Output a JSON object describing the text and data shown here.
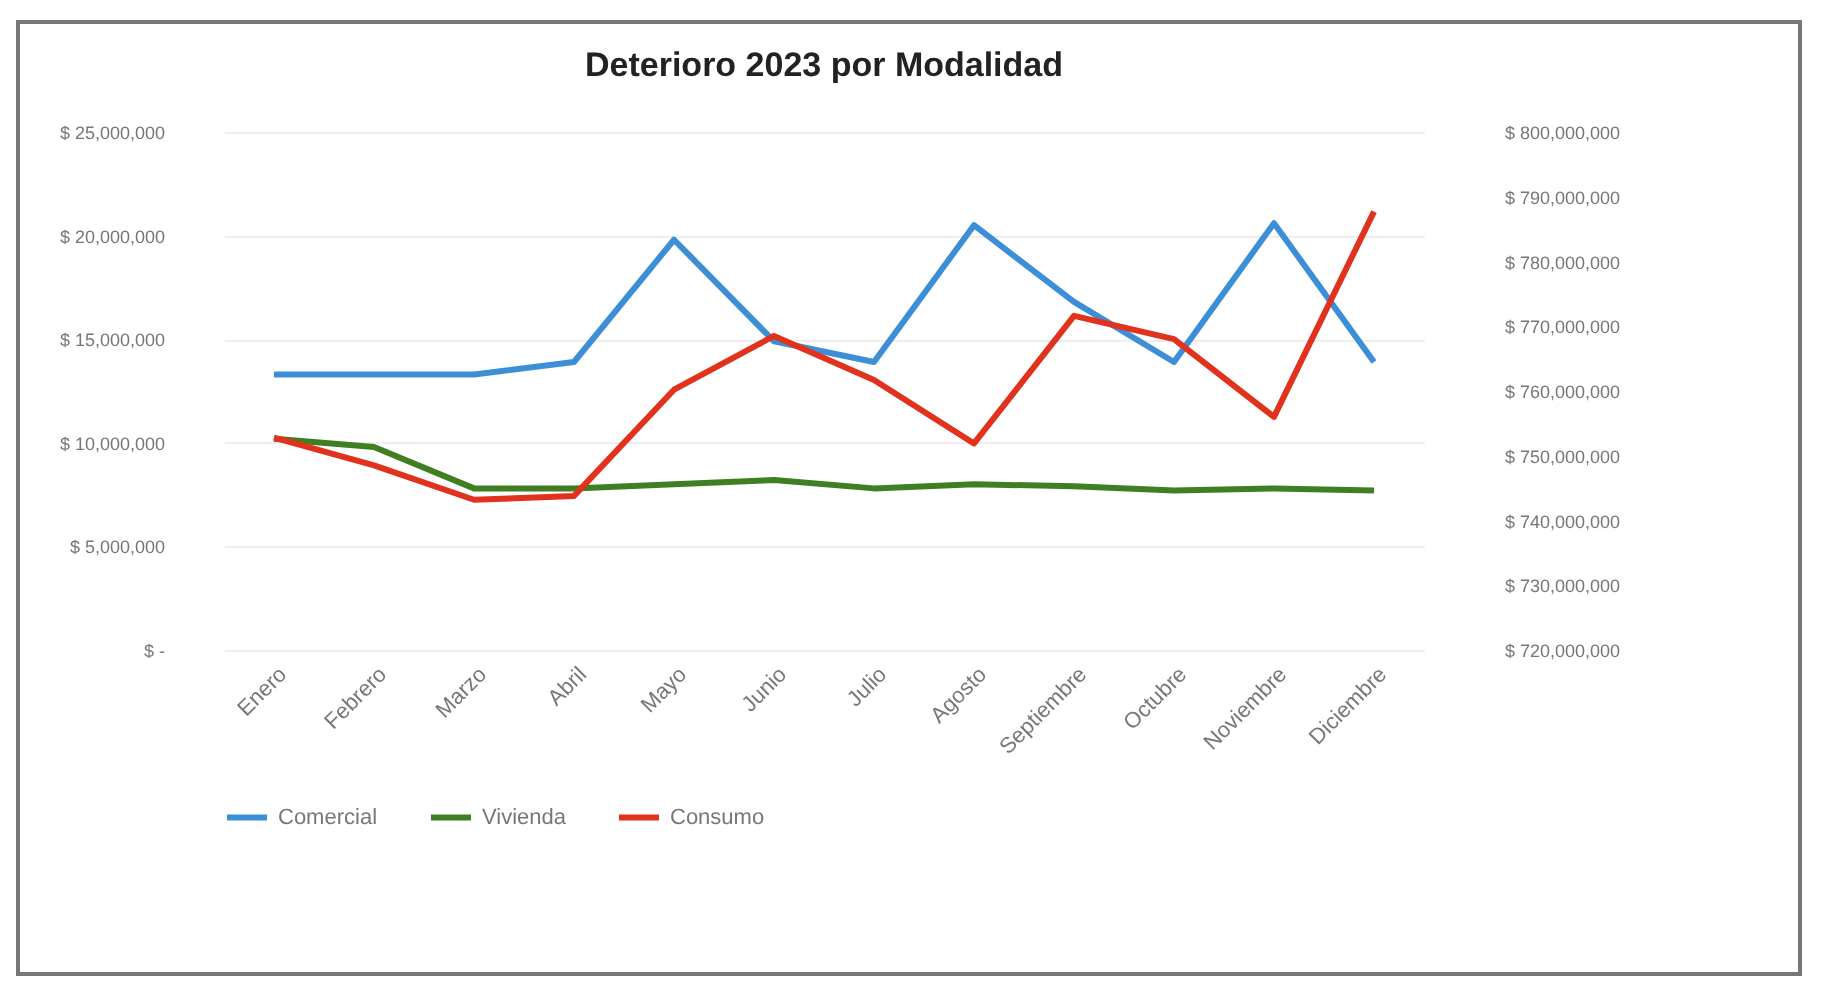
{
  "chart_data": {
    "type": "line",
    "title": "Deterioro 2023 por Modalidad",
    "categories": [
      "Enero",
      "Febrero",
      "Marzo",
      "Abril",
      "Mayo",
      "Junio",
      "Julio",
      "Agosto",
      "Septiembre",
      "Octubre",
      "Noviembre",
      "Diciembre"
    ],
    "series": [
      {
        "name": "Comercial",
        "color": "#3c8fd6",
        "values": [
          13300000,
          13300000,
          13300000,
          13900000,
          19800000,
          14900000,
          13900000,
          20500000,
          16800000,
          13900000,
          20600000,
          13900000
        ]
      },
      {
        "name": "Vivienda",
        "color": "#3f7f22",
        "values": [
          10200000,
          9800000,
          7800000,
          7800000,
          8000000,
          8200000,
          7800000,
          8000000,
          7900000,
          7700000,
          7800000,
          7700000
        ]
      },
      {
        "name": "Consumo",
        "color": "#e0321c",
        "axis": "y2",
        "values": [
          752800000,
          748500000,
          743200000,
          743800000,
          760200000,
          768500000,
          761700000,
          751900000,
          771600000,
          768000000,
          756000000,
          787700000
        ]
      }
    ],
    "ylim": [
      0,
      25000000
    ],
    "yticks": [
      {
        "value": 0,
        "label": "$ -"
      },
      {
        "value": 5000000,
        "label": "$ 5,000,000"
      },
      {
        "value": 10000000,
        "label": "$ 10,000,000"
      },
      {
        "value": 15000000,
        "label": "$ 15,000,000"
      },
      {
        "value": 20000000,
        "label": "$ 20,000,000"
      },
      {
        "value": 25000000,
        "label": "$ 25,000,000"
      }
    ],
    "y2lim": [
      720000000,
      800000000
    ],
    "y2ticks": [
      {
        "value": 720000000,
        "label": "$ 720,000,000"
      },
      {
        "value": 730000000,
        "label": "$ 730,000,000"
      },
      {
        "value": 740000000,
        "label": "$ 740,000,000"
      },
      {
        "value": 750000000,
        "label": "$ 750,000,000"
      },
      {
        "value": 760000000,
        "label": "$ 760,000,000"
      },
      {
        "value": 770000000,
        "label": "$ 770,000,000"
      },
      {
        "value": 780000000,
        "label": "$ 780,000,000"
      },
      {
        "value": 790000000,
        "label": "$ 790,000,000"
      },
      {
        "value": 800000000,
        "label": "$ 800,000,000"
      }
    ],
    "grid": "y",
    "legend": "bottom",
    "marker": "none",
    "line_style": "solid"
  }
}
